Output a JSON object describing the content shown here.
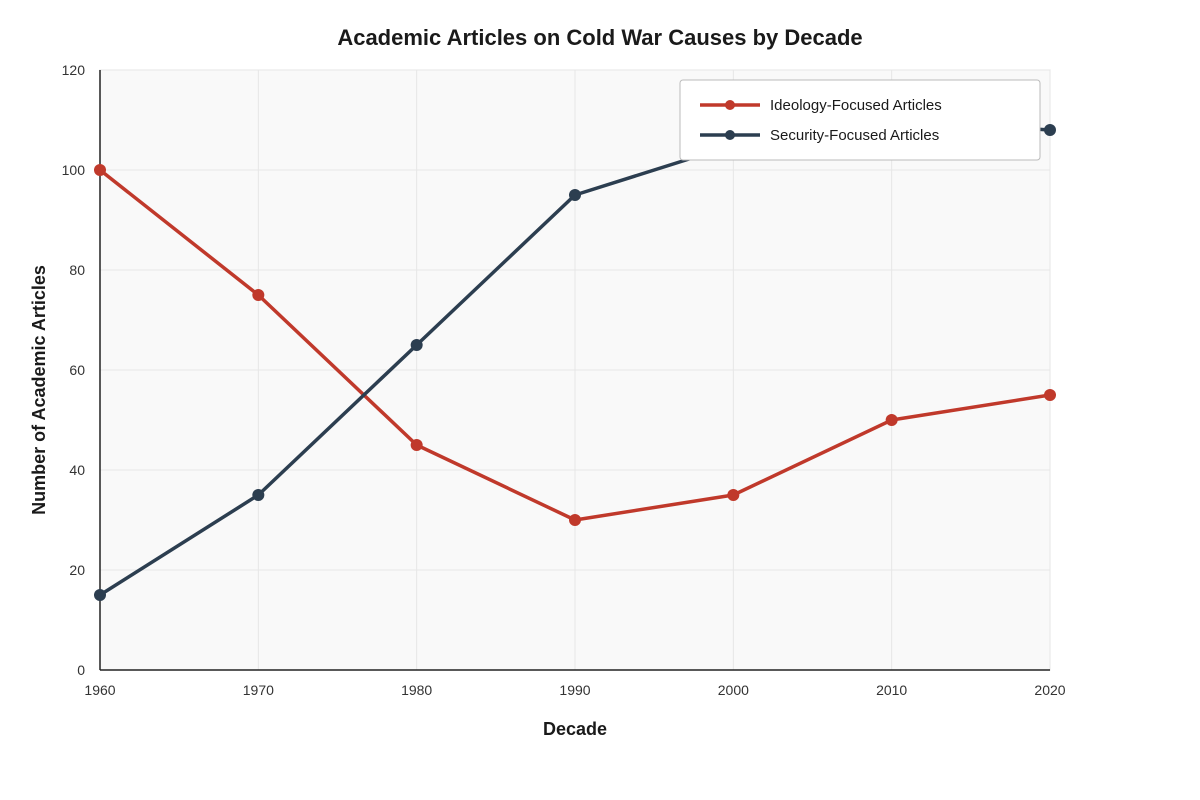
{
  "chart_data": {
    "type": "line",
    "title": "Academic Articles on Cold War Causes by Decade",
    "xlabel": "Decade",
    "ylabel": "Number of Academic Articles",
    "x": [
      1960,
      1970,
      1980,
      1990,
      2000,
      2010,
      2020
    ],
    "x_tick_labels": [
      "1960",
      "1970",
      "1980",
      "1990",
      "2000",
      "2010",
      "2020"
    ],
    "xlim": [
      1960,
      2020
    ],
    "ylim": [
      0,
      120
    ],
    "y_ticks": [
      0,
      20,
      40,
      60,
      80,
      100,
      120
    ],
    "grid": true,
    "legend_position": "top-right",
    "series": [
      {
        "name": "Ideology-Focused Articles",
        "color": "#c0392b",
        "values": [
          100,
          75,
          45,
          30,
          35,
          50,
          55
        ]
      },
      {
        "name": "Security-Focused Articles",
        "color": "#2c3e50",
        "values": [
          15,
          35,
          65,
          95,
          105,
          110,
          108
        ]
      }
    ]
  }
}
